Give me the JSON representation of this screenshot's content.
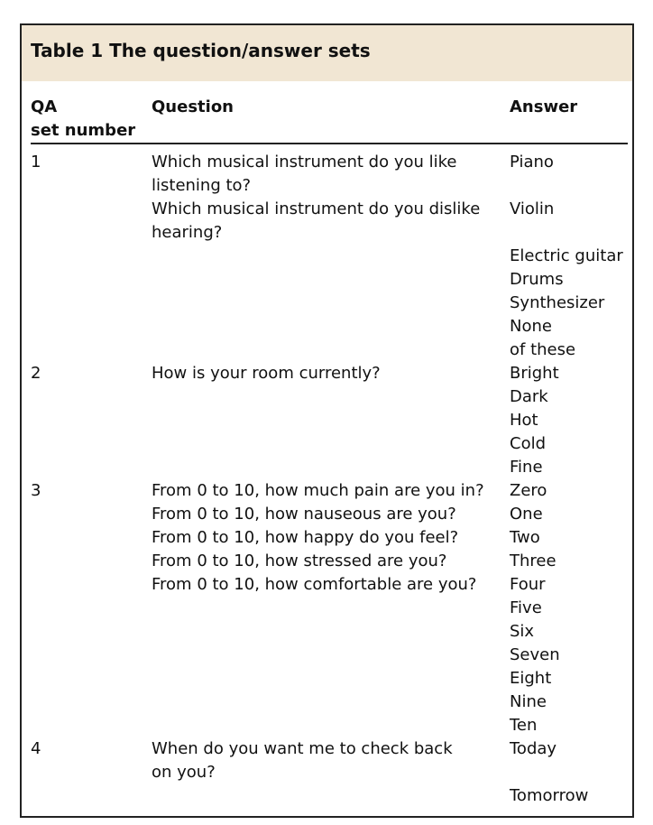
{
  "title": "Table 1 The question/answer sets",
  "headers": {
    "set": "QA",
    "set2": "set number",
    "question": "Question",
    "answer": "Answer"
  },
  "rows": [
    {
      "set": "1",
      "questions": [
        "Which musical instrument do you like",
        "listening to?",
        "Which musical instrument do you dislike",
        "hearing?"
      ],
      "answers": [
        "Piano",
        "Violin",
        "Electric guitar",
        "Drums",
        "Synthesizer",
        "None",
        "of these"
      ]
    },
    {
      "set": "2",
      "questions": [
        "How is your room currently?"
      ],
      "answers": [
        "Bright",
        "Dark",
        "Hot",
        "Cold",
        "Fine"
      ]
    },
    {
      "set": "3",
      "questions": [
        "From 0 to 10, how much pain are you in?",
        "From 0 to 10, how nauseous are you?",
        "From 0 to 10, how happy do you feel?",
        "From 0 to 10, how stressed are you?",
        "From 0 to 10, how comfortable are you?"
      ],
      "answers": [
        "Zero",
        "One",
        "Two",
        "Three",
        "Four",
        "Five",
        "Six",
        "Seven",
        "Eight",
        "Nine",
        "Ten"
      ]
    },
    {
      "set": "4",
      "questions": [
        "When do you want me to check back",
        "on you?"
      ],
      "answers": [
        "Today",
        "Tomorrow"
      ]
    }
  ]
}
